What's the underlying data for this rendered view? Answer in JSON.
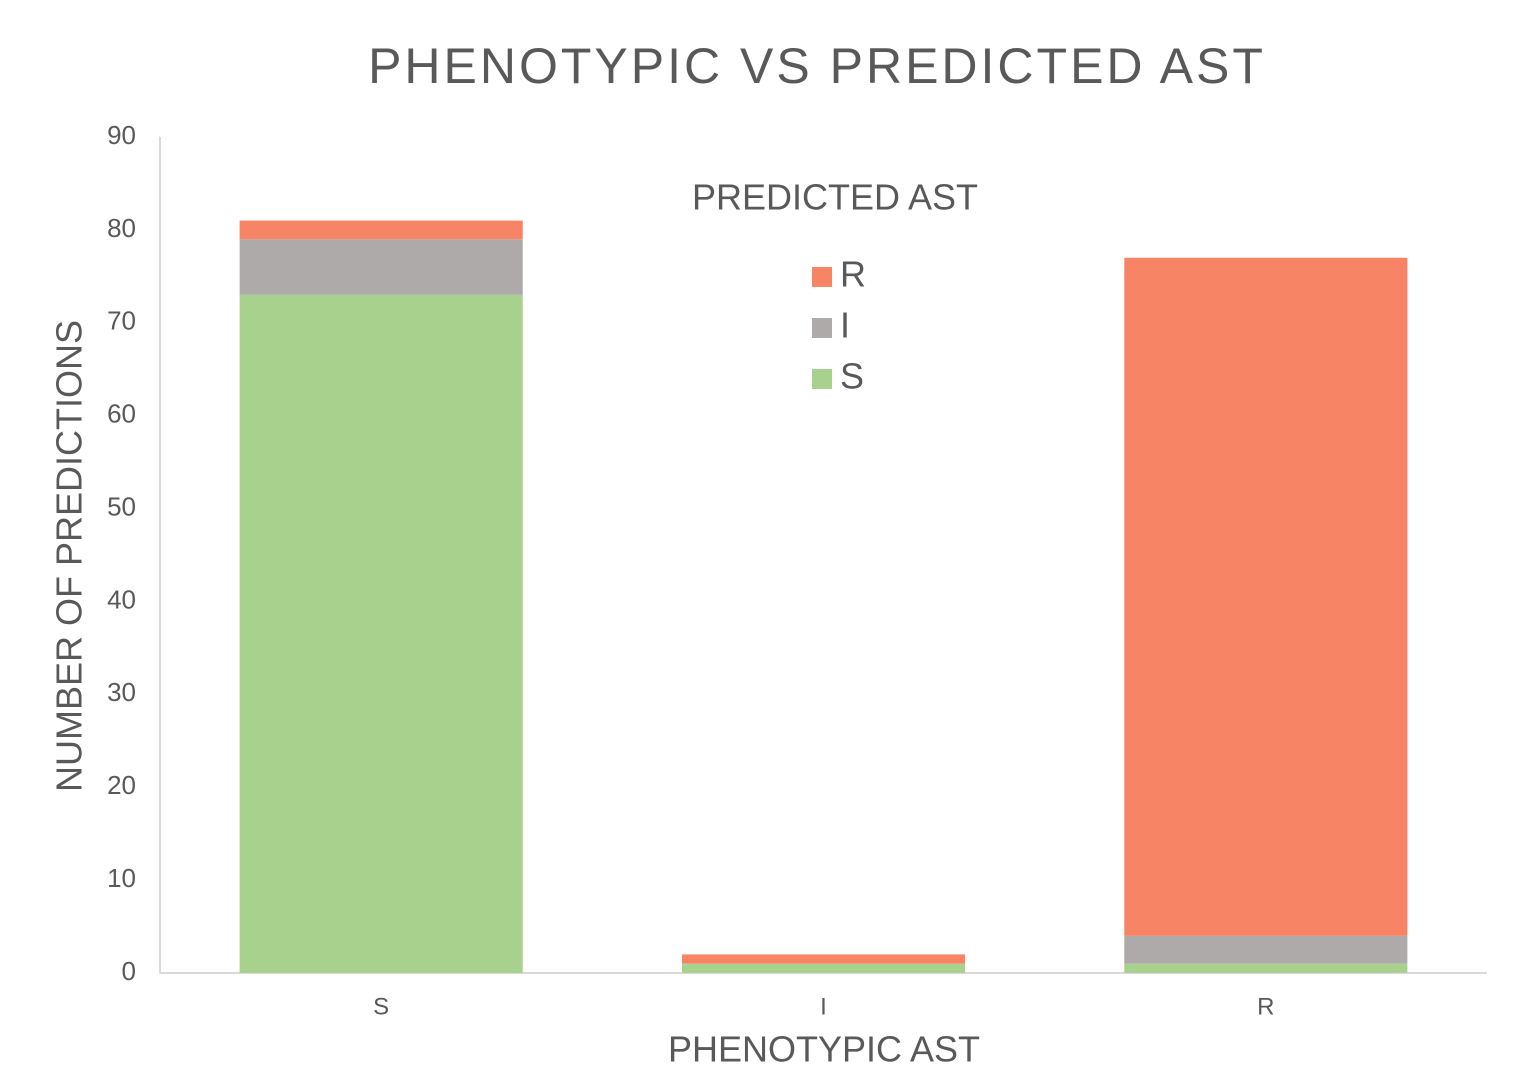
{
  "chart_data": {
    "type": "stacked_bar",
    "title": "PHENOTYPIC VS PREDICTED AST",
    "x_label": "PHENOTYPIC AST",
    "y_label": "NUMBER OF PREDICTIONS",
    "legend_title": "PREDICTED AST",
    "categories": [
      "S",
      "I",
      "R"
    ],
    "series": [
      {
        "name": "S",
        "color": "#a9d18e",
        "values": [
          73,
          1,
          1
        ]
      },
      {
        "name": "I",
        "color": "#aeaaaa",
        "values": [
          6,
          0,
          3
        ]
      },
      {
        "name": "R",
        "color": "#f88466",
        "values": [
          2,
          1,
          73
        ]
      }
    ],
    "ylim": [
      0,
      90
    ],
    "yticks": [
      0,
      10,
      20,
      30,
      40,
      50,
      60,
      70,
      80,
      90
    ],
    "grid": false,
    "legend": "top"
  }
}
